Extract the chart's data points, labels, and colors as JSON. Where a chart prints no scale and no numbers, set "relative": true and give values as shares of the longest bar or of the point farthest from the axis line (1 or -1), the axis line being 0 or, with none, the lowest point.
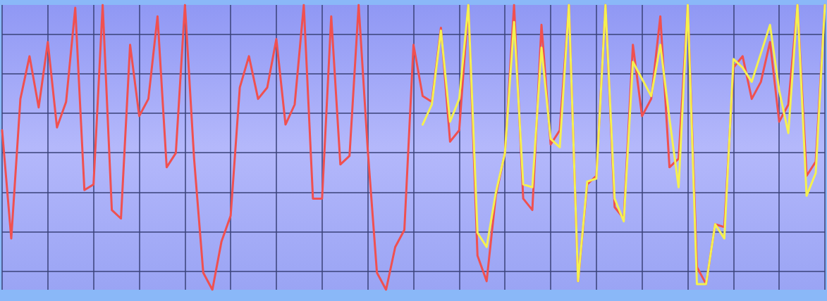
{
  "chart_data": {
    "type": "line",
    "relative": true,
    "grid": true,
    "marker": "none",
    "line_style": "solid",
    "categories": [
      null,
      null,
      null,
      null,
      null,
      null,
      null,
      null,
      null,
      null,
      null,
      null,
      null,
      null,
      null,
      null,
      null,
      null,
      null,
      null,
      null,
      null,
      null,
      null,
      null,
      null,
      null,
      null,
      null,
      null,
      null,
      null,
      null,
      null,
      null,
      null,
      null,
      null,
      null,
      null,
      null,
      null,
      null,
      null,
      null,
      null,
      null,
      null,
      null,
      null,
      null,
      null,
      null,
      null,
      null,
      null,
      null,
      null,
      null,
      null,
      null,
      null,
      null,
      null,
      null,
      null,
      null,
      null,
      null,
      null,
      null,
      null,
      null,
      null,
      null,
      null,
      null,
      null,
      null,
      null,
      null,
      null,
      null,
      null,
      null,
      null,
      null,
      null,
      null,
      null,
      null
    ],
    "series": [
      {
        "color": "#f05050",
        "values": [
          0.56,
          0.18,
          0.67,
          0.82,
          0.64,
          0.87,
          0.57,
          0.66,
          0.99,
          0.35,
          0.37,
          1,
          0.28,
          0.25,
          0.86,
          0.61,
          0.67,
          0.96,
          0.43,
          0.48,
          1,
          0.46,
          0.06,
          0,
          0.17,
          0.26,
          0.71,
          0.82,
          0.67,
          0.71,
          0.88,
          0.58,
          0.65,
          1,
          0.32,
          0.32,
          0.96,
          0.44,
          0.47,
          1,
          0.49,
          0.06,
          0,
          0.15,
          0.21,
          0.86,
          0.68,
          0.66,
          0.92,
          0.52,
          0.56,
          1,
          0.12,
          0.03,
          0.33,
          0.48,
          1,
          0.32,
          0.28,
          0.93,
          0.51,
          0.56,
          1,
          0.03,
          0.37,
          0.4,
          1,
          0.29,
          0.25,
          0.86,
          0.61,
          0.67,
          0.96,
          0.43,
          0.46,
          1,
          0.08,
          0.02,
          0.23,
          0.22,
          0.78,
          0.82,
          0.67,
          0.73,
          0.87,
          0.59,
          0.65,
          1,
          0.4,
          0.45,
          1
        ]
      },
      {
        "color": "#f5f050",
        "values": [
          null,
          null,
          null,
          null,
          null,
          null,
          null,
          null,
          null,
          null,
          null,
          null,
          null,
          null,
          null,
          null,
          null,
          null,
          null,
          null,
          null,
          null,
          null,
          null,
          null,
          null,
          null,
          null,
          null,
          null,
          null,
          null,
          null,
          null,
          null,
          null,
          null,
          null,
          null,
          null,
          null,
          null,
          null,
          null,
          null,
          null,
          0.58,
          0.65,
          0.91,
          0.59,
          0.67,
          1,
          0.2,
          0.15,
          0.34,
          0.48,
          0.94,
          0.37,
          0.36,
          0.85,
          0.53,
          0.5,
          1,
          0.03,
          0.38,
          0.39,
          1,
          0.32,
          0.24,
          0.8,
          0.74,
          0.68,
          0.86,
          0.6,
          0.36,
          1,
          0.02,
          0.02,
          0.23,
          0.18,
          0.81,
          0.78,
          0.73,
          0.83,
          0.93,
          0.7,
          0.55,
          1,
          0.33,
          0.41,
          1
        ]
      }
    ]
  }
}
